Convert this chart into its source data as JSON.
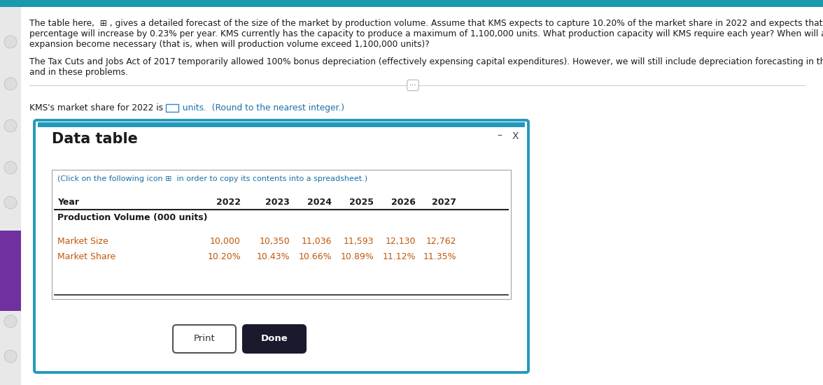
{
  "header_bg_color": "#1a9aac",
  "page_bg_color": "#f0f0f0",
  "dialog_bg_color": "#ffffff",
  "sidebar_bg": "#f0f0f0",
  "left_accent_color": "#7030a0",
  "text_color_black": "#1a1a1a",
  "text_color_orange": "#c0570a",
  "text_color_teal": "#1a6fa8",
  "text_color_dark_teal": "#1a6fa8",
  "dialog_border_color": "#2299bb",
  "inner_box_border_color": "#aaaaaa",
  "paragraph1_line1": "The table here,  ⊞ , gives a detailed forecast of the size of the market by production volume. Assume that KMS expects to capture 10.20% of the market share in 2022 and expects that",
  "paragraph1_line2": "percentage will increase by 0.23% per year. KMS currently has the capacity to produce a maximum of 1,100,000 units. What production capacity will KMS require each year? When will an",
  "paragraph1_line3": "expansion become necessary (that is, when will production volume exceed 1,100,000 units)?",
  "paragraph2_line1": "The Tax Cuts and Jobs Act of 2017 temporarily allowed 100% bonus depreciation (effectively expensing capital expenditures). However, we will still include depreciation forecasting in this chapter",
  "paragraph2_line2": "and in these problems.",
  "kms_prefix": "KMS's market share for 2022 is ",
  "kms_suffix": " units.  (Round to the nearest integer.)",
  "data_table_title": "Data table",
  "click_note": "(Click on the following icon ⊞  in order to copy its contents into a spreadsheet.)",
  "years": [
    "2022",
    "2023",
    "2024",
    "2025",
    "2026",
    "2027"
  ],
  "row_header_label": "Year",
  "row_group_label": "Production Volume (000 units)",
  "row1_label": "Market Size",
  "row2_label": "Market Share",
  "market_size": [
    "10,000",
    "10,350",
    "11,036",
    "11,593",
    "12,130",
    "12,762"
  ],
  "market_share": [
    "10.20%",
    "10.43%",
    "10.66%",
    "10.89%",
    "11.12%",
    "11.35%"
  ],
  "print_btn_label": "Print",
  "done_btn_label": "Done"
}
